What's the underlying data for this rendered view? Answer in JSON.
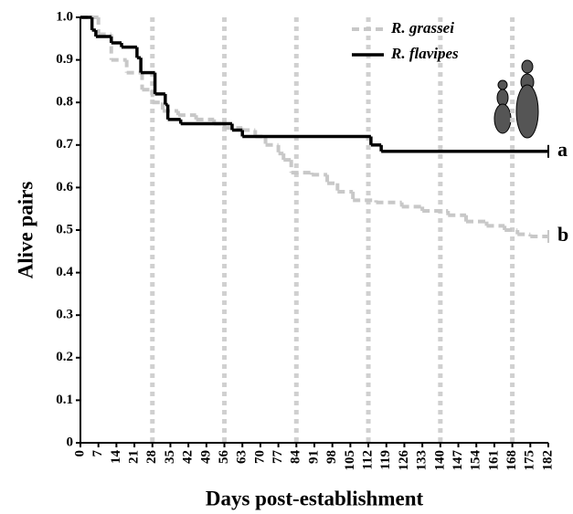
{
  "chart_data": {
    "type": "step",
    "x_label": "Days post-establishment",
    "y_label": "Alive pairs",
    "xlim": [
      0,
      182
    ],
    "ylim": [
      0,
      1
    ],
    "xticks": [
      0,
      7,
      14,
      21,
      28,
      35,
      42,
      49,
      56,
      63,
      70,
      77,
      84,
      91,
      98,
      105,
      112,
      119,
      126,
      133,
      140,
      147,
      154,
      161,
      168,
      175,
      182
    ],
    "yticks": [
      0,
      0.1,
      0.2,
      0.3,
      0.4,
      0.5,
      0.6,
      0.7,
      0.8,
      0.9,
      {
        "value": 1,
        "label": "1.0"
      }
    ],
    "vlines": [
      28,
      56,
      84,
      112,
      140,
      168
    ],
    "series": [
      {
        "name": "R. grassei",
        "color": "#c8c8c8",
        "dash": true,
        "x": [
          0,
          7,
          12,
          18,
          24,
          28,
          32,
          38,
          45,
          52,
          56,
          63,
          68,
          72,
          77,
          79,
          82,
          90,
          96,
          100,
          106,
          115,
          125,
          133,
          143,
          150,
          158,
          165,
          170,
          175
        ],
        "values": [
          1,
          0.96,
          0.9,
          0.87,
          0.83,
          0.8,
          0.78,
          0.77,
          0.76,
          0.75,
          0.74,
          0.735,
          0.72,
          0.7,
          0.68,
          0.665,
          0.635,
          0.63,
          0.61,
          0.59,
          0.57,
          0.565,
          0.555,
          0.545,
          0.535,
          0.52,
          0.51,
          0.5,
          0.49,
          0.485
        ],
        "end_label": "b"
      },
      {
        "name": "R. flavipes",
        "color": "#000000",
        "dash": false,
        "x": [
          0,
          4.5,
          6,
          12,
          16,
          22,
          23.5,
          29,
          33,
          34,
          39,
          59,
          63,
          113,
          117
        ],
        "values": [
          1,
          0.97,
          0.955,
          0.94,
          0.93,
          0.905,
          0.87,
          0.82,
          0.795,
          0.76,
          0.75,
          0.735,
          0.72,
          0.7,
          0.685
        ],
        "end_label": "a"
      }
    ]
  }
}
